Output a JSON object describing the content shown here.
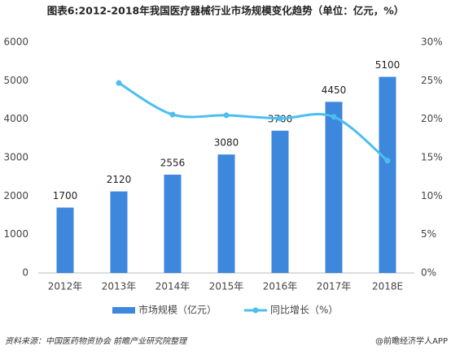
{
  "chart_data": {
    "type": "bar",
    "title": "图表6:2012-2018年我国医疗器械行业市场规模变化趋势（单位：亿元，%）",
    "categories": [
      "2012年",
      "2013年",
      "2014年",
      "2015年",
      "2016年",
      "2017年",
      "2018E"
    ],
    "series": [
      {
        "name": "市场规模（亿元）",
        "type": "bar",
        "color": "#3d87dd",
        "values": [
          1700,
          2120,
          2556,
          3080,
          3700,
          4450,
          5100
        ]
      },
      {
        "name": "同比增长（%）",
        "type": "line",
        "axis": "y2",
        "color": "#4cbef0",
        "values": [
          null,
          24.7,
          20.6,
          20.5,
          20.1,
          20.3,
          14.6
        ]
      }
    ],
    "ylim": [
      0,
      6000
    ],
    "yticks": [
      0,
      1000,
      2000,
      3000,
      4000,
      5000,
      6000
    ],
    "y2lim": [
      0,
      30
    ],
    "y2ticks": [
      {
        "value": 0,
        "label": "0%"
      },
      {
        "value": 5,
        "label": "5%"
      },
      {
        "value": 10,
        "label": "10%"
      },
      {
        "value": 15,
        "label": "15%"
      },
      {
        "value": 20,
        "label": "20%"
      },
      {
        "value": 25,
        "label": "25%"
      },
      {
        "value": 30,
        "label": "30%"
      }
    ],
    "legend": "bottom",
    "source": "资料来源：中国医药物资协会  前瞻产业研究院整理",
    "credit": "@前瞻经济学人APP"
  }
}
